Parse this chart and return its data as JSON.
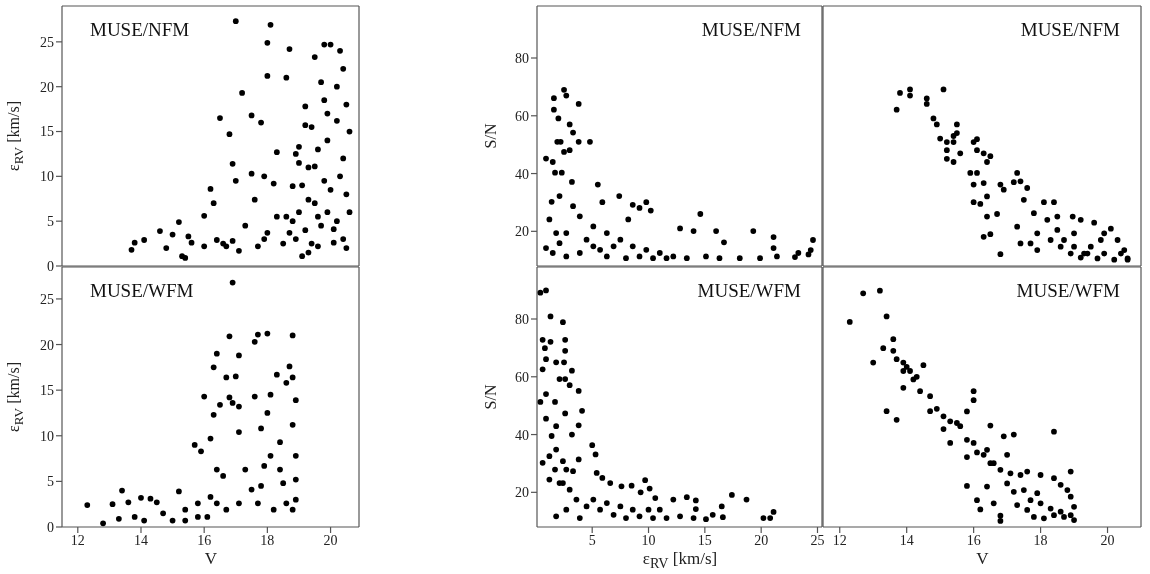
{
  "chart_data": [
    {
      "type": "scatter",
      "annotations": [
        "MUSE/NFM"
      ],
      "ylabel": "ε$_{RV}$ [km/s]",
      "xlim": [
        11.5,
        20.9
      ],
      "ylim": [
        0,
        29
      ],
      "xticks": [
        12,
        14,
        16,
        18,
        20
      ],
      "yticks": [
        0,
        5,
        10,
        15,
        20,
        25
      ],
      "tick_labels": "y",
      "marker": "circle",
      "color": "#000000",
      "x": [
        13.7,
        13.8,
        14.1,
        14.6,
        14.8,
        15.0,
        15.2,
        15.3,
        15.4,
        15.5,
        15.6,
        16.0,
        16.0,
        16.2,
        16.3,
        16.4,
        16.5,
        16.7,
        16.8,
        16.9,
        17.0,
        17.0,
        17.2,
        17.1,
        17.5,
        17.5,
        17.6,
        17.7,
        17.8,
        17.9,
        18.0,
        18.1,
        18.0,
        18.0,
        18.2,
        18.3,
        18.6,
        18.7,
        18.6,
        18.7,
        18.8,
        19.0,
        19.2,
        19.3,
        19.5,
        19.5,
        19.6,
        19.6,
        19.8,
        20.0,
        19.8,
        19.9,
        20.0,
        20.1,
        20.1,
        19.3,
        19.1,
        20.2,
        20.3,
        20.4,
        20.5,
        20.2,
        20.6,
        20.4,
        20.3,
        20.5,
        20.6,
        20.2,
        20.4,
        20.5,
        18.8,
        18.9,
        19.0,
        19.1,
        19.2,
        19.3,
        19.4,
        19.5,
        19.6,
        19.7,
        19.8,
        19.9,
        19.0,
        18.9,
        19.2,
        19.4,
        19.7,
        19.9,
        17.3,
        17.9,
        18.3,
        18.5,
        16.9,
        16.6
      ],
      "values": [
        1.8,
        2.6,
        2.9,
        3.9,
        2.0,
        3.5,
        4.9,
        1.1,
        0.9,
        3.3,
        2.6,
        5.6,
        2.2,
        8.6,
        7.0,
        2.9,
        16.5,
        2.2,
        14.7,
        11.4,
        27.3,
        9.5,
        19.3,
        1.7,
        16.8,
        10.3,
        7.4,
        2.2,
        16.0,
        10.0,
        24.9,
        26.9,
        21.2,
        3.7,
        9.2,
        12.7,
        21.0,
        24.2,
        5.5,
        3.7,
        8.9,
        13.3,
        15.7,
        7.4,
        23.3,
        11.1,
        5.5,
        2.2,
        24.7,
        24.7,
        18.5,
        14.0,
        8.5,
        4.1,
        2.6,
        1.5,
        1.1,
        16.2,
        24,
        22,
        18,
        20,
        15,
        12,
        10,
        8,
        6,
        5,
        3,
        2,
        5,
        3,
        6,
        9,
        4,
        11,
        2.5,
        7,
        13,
        4.5,
        9.5,
        6,
        11.5,
        12.5,
        17.8,
        15.5,
        20.5,
        17,
        4.5,
        3,
        5.5,
        2.5,
        2.8,
        2.5
      ]
    },
    {
      "type": "scatter",
      "annotations": [
        "MUSE/NFM"
      ],
      "ylabel": "S/N",
      "xlim": [
        0.1,
        25.4
      ],
      "ylim": [
        8,
        98
      ],
      "xticks": [
        5,
        10,
        15,
        20,
        25
      ],
      "yticks": [
        20,
        40,
        60,
        80
      ],
      "tick_labels": "y",
      "marker": "circle",
      "color": "#000000",
      "x": [
        0.9,
        0.9,
        1.5,
        1.6,
        1.6,
        2.0,
        1.9,
        2.5,
        2.7,
        2.2,
        3.0,
        3.3,
        3.8,
        3.8,
        4.8,
        2.5,
        3.0,
        1.7,
        2.3,
        1.4,
        1.2,
        2.1,
        3.2,
        5.5,
        5.9,
        7.4,
        8.6,
        9.2,
        9.8,
        10.2,
        8.2,
        12.8,
        14.0,
        14.6,
        16.0,
        16.7,
        19.3,
        21.1,
        21.1,
        21.4,
        23.0,
        23.3,
        19.9,
        18.1,
        16.3,
        15.1,
        13.4,
        12.2,
        11.0,
        9.8,
        8.6,
        7.5,
        6.3,
        5.1,
        3.9,
        3.3,
        2.7,
        2.1,
        1.8,
        1.5,
        2.7,
        3.9,
        5.1,
        6.3,
        6.9,
        8.0,
        9.2,
        10.4,
        11.6,
        4.5,
        5.7,
        24.6,
        24.2,
        24.4
      ],
      "values": [
        45.2,
        14.2,
        44.0,
        66.1,
        62.1,
        59.1,
        51.0,
        69.0,
        67.0,
        51.0,
        57.0,
        54.2,
        64.1,
        51.0,
        51.0,
        47.5,
        48.1,
        40.3,
        40.3,
        30.2,
        24.1,
        32.2,
        37.1,
        36.2,
        30.1,
        32.2,
        29.2,
        28.1,
        30.1,
        27.2,
        24.1,
        21.0,
        20.1,
        26.0,
        20.1,
        16.2,
        20.1,
        18.0,
        14.2,
        11.3,
        11.1,
        12.5,
        10.7,
        10.7,
        10.7,
        11.3,
        10.7,
        11.3,
        12.5,
        13.6,
        14.8,
        17.1,
        19.4,
        21.7,
        25.2,
        28.7,
        19.4,
        15.9,
        19.4,
        12.5,
        11.3,
        12.5,
        14.8,
        11.3,
        14.8,
        10.7,
        11.3,
        10.7,
        10.7,
        17.1,
        13.6,
        17,
        12,
        13.5
      ]
    },
    {
      "type": "scatter",
      "annotations": [
        "MUSE/NFM"
      ],
      "xlim": [
        11.5,
        21
      ],
      "ylim": [
        8,
        98
      ],
      "xticks": [
        12,
        14,
        16,
        18,
        20
      ],
      "yticks": [
        20,
        40,
        60,
        80
      ],
      "tick_labels": false,
      "marker": "circle",
      "color": "#000000",
      "x": [
        13.7,
        13.8,
        14.1,
        14.1,
        14.6,
        14.6,
        15.1,
        14.8,
        14.9,
        15.0,
        15.2,
        15.4,
        15.4,
        15.5,
        15.5,
        15.2,
        15.2,
        15.4,
        15.6,
        16.0,
        16.1,
        16.1,
        16.3,
        16.4,
        16.5,
        15.9,
        16.1,
        16.0,
        16.3,
        16.0,
        16.2,
        16.4,
        16.4,
        16.3,
        16.5,
        16.8,
        16.8,
        16.7,
        16.9,
        17.2,
        17.3,
        17.4,
        17.5,
        17.4,
        17.6,
        17.7,
        17.8,
        17.9,
        18.1,
        18.2,
        18.4,
        18.5,
        18.5,
        18.7,
        18.96,
        19.0,
        19.2,
        19.3,
        19.5,
        19.6,
        19.8,
        19.9,
        20.1,
        20.3,
        20.5,
        20.6,
        20.6,
        20.2,
        19.7,
        19.2,
        18.9,
        18.6,
        18.3,
        17.9,
        17.3,
        19.0,
        19.4,
        19.9,
        20.4
      ],
      "values": [
        62.1,
        67.9,
        69.1,
        67.0,
        66.0,
        64.1,
        69.1,
        59.1,
        57.0,
        52.1,
        50.9,
        50.9,
        53.0,
        54.0,
        57.0,
        48.1,
        45.1,
        44.0,
        47.0,
        50.9,
        51.9,
        48.1,
        47.0,
        44.0,
        46.0,
        40.2,
        40.2,
        36.2,
        36.7,
        30.1,
        29.5,
        32.1,
        25.1,
        18.1,
        19.0,
        36.2,
        12.1,
        26.0,
        34.4,
        37.0,
        40.2,
        37.3,
        30.9,
        15.8,
        35.0,
        15.8,
        26.3,
        13.5,
        30.1,
        24.0,
        30.1,
        20.5,
        25.1,
        17.0,
        25.1,
        19.3,
        24.0,
        12.3,
        14.7,
        23.0,
        17.0,
        19.3,
        20.9,
        17.0,
        13.5,
        10.6,
        10.2,
        10.2,
        10.6,
        10.9,
        12.3,
        14.7,
        17.0,
        19.3,
        21.6,
        14.7,
        12.3,
        12.3,
        12.3
      ]
    },
    {
      "type": "scatter",
      "annotations": [
        "MUSE/WFM"
      ],
      "xlabel": "V",
      "ylabel": "ε$_{RV}$ [km/s]",
      "xlim": [
        11.5,
        20.9
      ],
      "ylim": [
        0,
        28.5
      ],
      "xticks": [
        12,
        14,
        16,
        18,
        20
      ],
      "yticks": [
        0,
        5,
        10,
        15,
        20,
        25
      ],
      "marker": "circle",
      "color": "#000000",
      "x": [
        12.3,
        12.8,
        13.1,
        13.4,
        13.3,
        13.6,
        14.0,
        13.8,
        14.3,
        14.1,
        14.5,
        14.7,
        15.0,
        15.2,
        15.4,
        15.8,
        15.7,
        15.9,
        16.1,
        16.0,
        16.2,
        16.3,
        16.4,
        16.3,
        16.4,
        16.5,
        16.7,
        16.8,
        16.8,
        16.9,
        16.9,
        17.0,
        17.1,
        17.1,
        17.1,
        17.3,
        17.1,
        17.6,
        17.6,
        17.7,
        17.8,
        17.8,
        18.0,
        18.0,
        18.1,
        18.3,
        18.1,
        18.4,
        18.6,
        18.7,
        18.6,
        18.8,
        18.8,
        18.9,
        18.8,
        18.9,
        18.9,
        18.9,
        18.8,
        18.5,
        18.2,
        17.7,
        16.7,
        16.4,
        16.2,
        15.8,
        15.4,
        16.6,
        17.9,
        18.4,
        17.5
      ],
      "values": [
        2.4,
        0.4,
        2.5,
        4.0,
        0.9,
        2.7,
        3.2,
        1.1,
        3.1,
        0.7,
        2.7,
        1.5,
        0.7,
        3.9,
        1.9,
        2.6,
        9.0,
        8.3,
        1.1,
        14.3,
        9.7,
        17.5,
        19.0,
        12.3,
        6.3,
        13.4,
        16.4,
        14.2,
        20.9,
        26.8,
        13.6,
        16.5,
        18.8,
        13.2,
        10.4,
        6.3,
        2.6,
        14.3,
        20.3,
        21.1,
        10.8,
        4.5,
        21.2,
        12.5,
        14.5,
        16.7,
        7.8,
        6.3,
        2.6,
        17.6,
        15.8,
        16.4,
        21.0,
        13.9,
        11.2,
        7.8,
        5.2,
        3.0,
        1.9,
        4.8,
        1.9,
        2.6,
        1.9,
        2.6,
        3.3,
        1.1,
        0.7,
        5.6,
        6.7,
        9.3,
        4.1
      ]
    },
    {
      "type": "scatter",
      "annotations": [
        "MUSE/WFM"
      ],
      "xlabel": "ε$_{RV}$ [km/s]",
      "ylabel": "S/N",
      "xlim": [
        0.1,
        25.4
      ],
      "ylim": [
        8,
        98
      ],
      "xticks": [
        5,
        10,
        15,
        20,
        25
      ],
      "yticks": [
        20,
        40,
        60,
        80
      ],
      "marker": "circle",
      "color": "#000000",
      "x": [
        0.4,
        0.9,
        1.3,
        0.6,
        0.8,
        0.9,
        1.3,
        1.8,
        2.4,
        2.6,
        2.6,
        2.5,
        0.6,
        2.1,
        2.6,
        3.2,
        3.0,
        3.8,
        4.1,
        3.8,
        0.4,
        0.9,
        1.7,
        0.9,
        1.8,
        2.6,
        3.2,
        1.4,
        1.8,
        0.6,
        1.2,
        2.4,
        2.7,
        3.3,
        3.8,
        5.0,
        5.3,
        5.4,
        5.9,
        6.6,
        7.6,
        8.5,
        9.7,
        10.1,
        9.3,
        10.6,
        12.2,
        13.4,
        14.2,
        14.2,
        16.5,
        17.4,
        18.7,
        21.1,
        20.8,
        20.2,
        16.6,
        15.7,
        15.1,
        14.0,
        12.8,
        11.6,
        10.4,
        9.2,
        8.0,
        6.9,
        5.7,
        4.5,
        3.6,
        3.0,
        2.4,
        1.8,
        2.7,
        3.9,
        5.1,
        6.3,
        7.5,
        8.6,
        10.0,
        11.0,
        1.7,
        2.1,
        1.2
      ],
      "values": [
        89.1,
        89.9,
        80.9,
        72.8,
        69.9,
        66.1,
        72.1,
        65.0,
        78.9,
        72.8,
        69.0,
        65.0,
        62.6,
        59.2,
        59.2,
        62.1,
        57.1,
        55.1,
        48.2,
        43.2,
        51.3,
        54.0,
        51.3,
        45.5,
        42.9,
        47.3,
        40.0,
        39.5,
        34.8,
        30.2,
        24.4,
        30.8,
        27.9,
        27.3,
        31.4,
        36.3,
        33.1,
        26.7,
        25.0,
        23.2,
        22.1,
        22.3,
        24.2,
        21.3,
        20.0,
        18.0,
        17.5,
        18.3,
        17.2,
        14.2,
        15.1,
        19.1,
        17.5,
        13.2,
        11.1,
        11.1,
        11.4,
        12.2,
        10.7,
        11.1,
        11.7,
        11.1,
        11.1,
        11.7,
        11.1,
        12.2,
        14.0,
        15.1,
        17.5,
        20.9,
        23.2,
        11.7,
        14.0,
        11.1,
        17.5,
        16.3,
        15.1,
        14.0,
        14.0,
        14.0,
        27.9,
        23.2,
        32.5
      ]
    },
    {
      "type": "scatter",
      "annotations": [
        "MUSE/WFM"
      ],
      "xlabel": "V",
      "xlim": [
        11.5,
        21
      ],
      "ylim": [
        8,
        98
      ],
      "xticks": [
        12,
        14,
        16,
        18,
        20
      ],
      "yticks": [
        20,
        40,
        60,
        80
      ],
      "tick_labels": "x",
      "marker": "circle",
      "color": "#000000",
      "x": [
        12.3,
        12.7,
        13.2,
        13.4,
        13.3,
        13.0,
        13.6,
        13.6,
        13.7,
        13.4,
        13.7,
        13.9,
        13.9,
        14.0,
        14.1,
        14.2,
        14.3,
        14.5,
        13.9,
        14.4,
        14.7,
        14.7,
        14.9,
        15.1,
        15.1,
        15.3,
        15.5,
        15.3,
        15.6,
        15.8,
        16.0,
        16.0,
        15.8,
        16.0,
        15.8,
        16.1,
        16.3,
        16.5,
        16.5,
        16.8,
        16.9,
        17.2,
        17.0,
        17.1,
        16.4,
        16.1,
        16.6,
        15.8,
        16.2,
        16.8,
        16.8,
        17.2,
        17.4,
        17.6,
        18.0,
        18.4,
        18.4,
        18.6,
        18.8,
        18.9,
        18.9,
        19.0,
        19.0,
        18.7,
        18.4,
        18.1,
        17.8,
        17.6,
        17.3,
        17.7,
        18.0,
        18.3,
        18.6,
        18.9,
        17.9,
        17.5,
        17.0,
        16.6,
        16.4
      ],
      "values": [
        79.0,
        88.9,
        89.8,
        80.9,
        69.9,
        64.9,
        73.0,
        69.0,
        66.1,
        48.1,
        45.1,
        64.9,
        62.0,
        63.4,
        62.0,
        59.1,
        60.0,
        64.0,
        56.2,
        55.0,
        53.3,
        48.1,
        48.9,
        46.3,
        41.9,
        44.6,
        44.0,
        37.1,
        42.9,
        48.0,
        51.9,
        55.0,
        38.2,
        37.1,
        32.2,
        33.8,
        33.0,
        43.1,
        30.1,
        27.8,
        39.4,
        40.0,
        33.0,
        26.6,
        22.0,
        17.3,
        16.2,
        22.2,
        14.1,
        11.9,
        10.1,
        20.2,
        26.0,
        27.2,
        26.0,
        41.0,
        24.9,
        22.6,
        20.8,
        27.2,
        18.5,
        15.0,
        10.4,
        11.5,
        12.1,
        11.0,
        11.5,
        13.9,
        15.6,
        17.3,
        16.2,
        14.4,
        13.3,
        12.1,
        19.7,
        20.8,
        23.1,
        30.1,
        34.7
      ]
    }
  ]
}
